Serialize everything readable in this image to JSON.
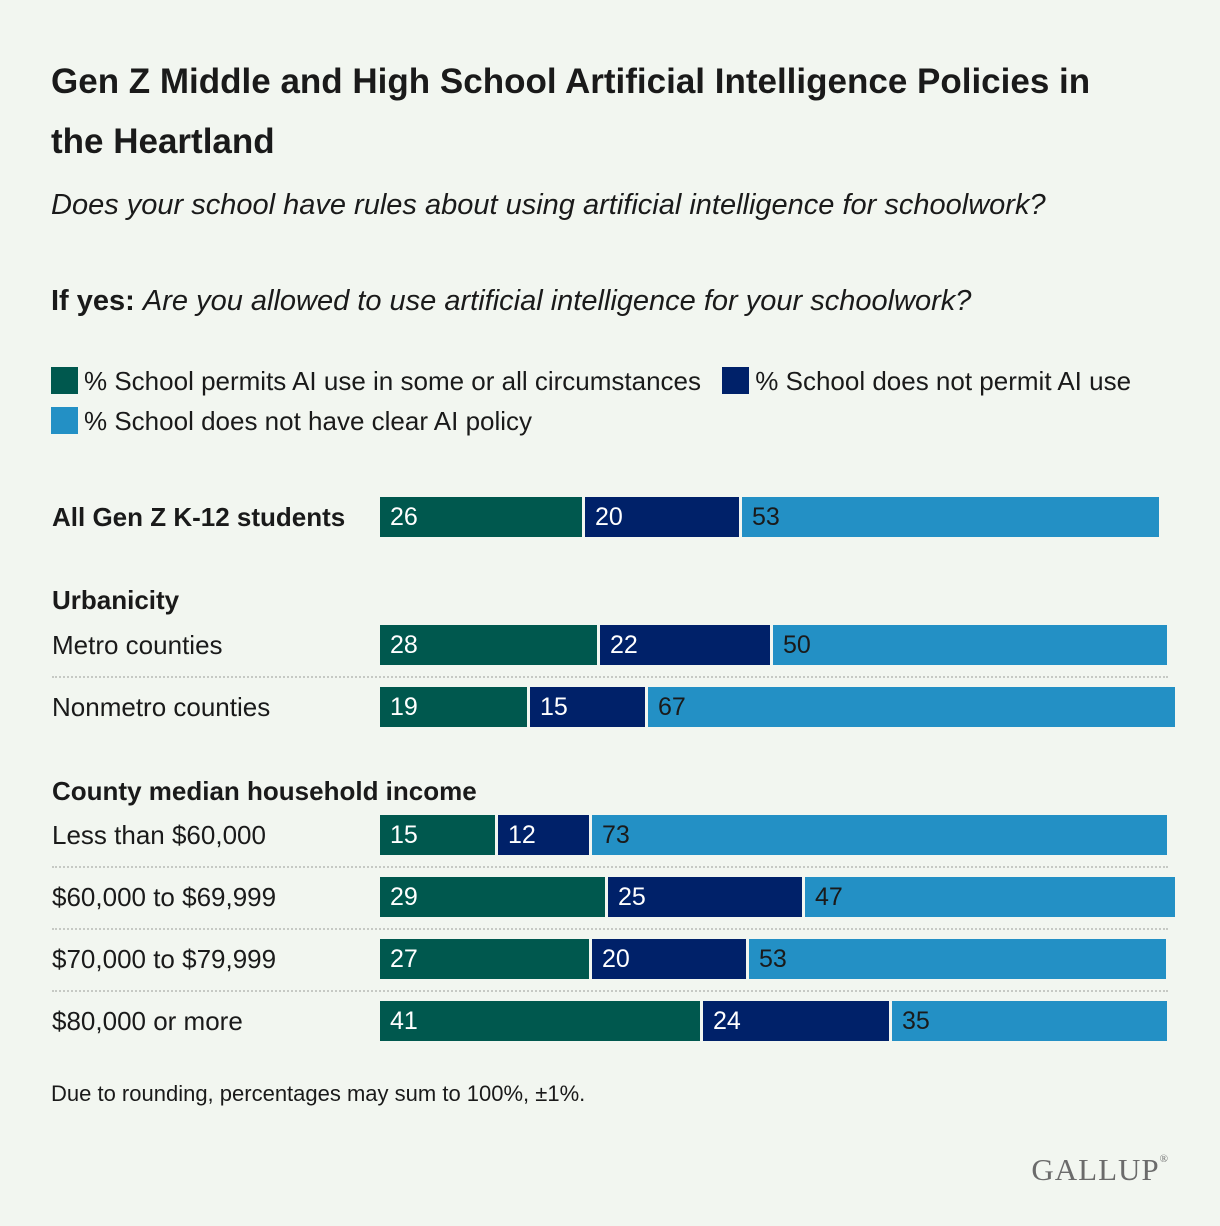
{
  "title": "Gen Z Middle and High School Artificial Intelligence Policies in the Heartland",
  "subtitle": "Does your school have rules about using artificial intelligence for schoolwork?",
  "subtitle2_lead": "If yes:",
  "subtitle2_question": "Are you allowed to use artificial intelligence for your schoolwork?",
  "legend": [
    {
      "label": "% School permits AI use in some or all circumstances",
      "color": "#00584e"
    },
    {
      "label": "% School does not permit AI use",
      "color": "#002169"
    },
    {
      "label": "% School does not have clear AI policy",
      "color": "#2390c5"
    }
  ],
  "groups": {
    "urbanicity": "Urbanicity",
    "income": "County median household income"
  },
  "footnote": "Due to rounding, percentages may sum to 100%, ±1%.",
  "brand": "GALLUP",
  "brand_mark": "®",
  "chart_data": {
    "type": "bar",
    "orientation": "horizontal",
    "stacked": true,
    "categories": [
      "All Gen Z K-12 students",
      "Metro counties",
      "Nonmetro counties",
      "Less than $60,000",
      "$60,000 to $69,999",
      "$70,000 to $79,999",
      "$80,000 or more"
    ],
    "series": [
      {
        "name": "% School permits AI use in some or all circumstances",
        "values": [
          26,
          28,
          19,
          15,
          29,
          27,
          41
        ]
      },
      {
        "name": "% School does not permit AI use",
        "values": [
          20,
          22,
          15,
          12,
          25,
          20,
          24
        ]
      },
      {
        "name": "% School does not have clear AI policy",
        "values": [
          53,
          50,
          67,
          73,
          47,
          53,
          35
        ]
      }
    ],
    "xlim": [
      0,
      100
    ]
  }
}
